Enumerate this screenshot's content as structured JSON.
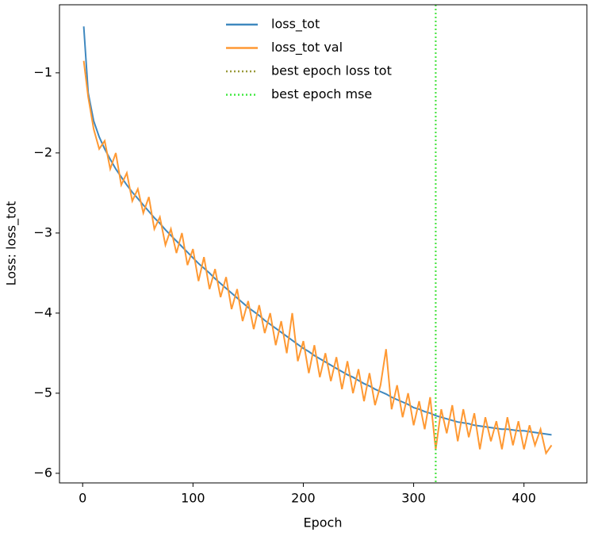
{
  "chart_data": {
    "type": "line",
    "x_label": "Epoch",
    "y_label": "Loss: loss_tot",
    "x": [
      1,
      5,
      10,
      15,
      20,
      25,
      30,
      35,
      40,
      45,
      50,
      55,
      60,
      65,
      70,
      75,
      80,
      85,
      90,
      95,
      100,
      105,
      110,
      115,
      120,
      125,
      130,
      135,
      140,
      145,
      150,
      155,
      160,
      165,
      170,
      175,
      180,
      185,
      190,
      195,
      200,
      205,
      210,
      215,
      220,
      225,
      230,
      235,
      240,
      245,
      250,
      255,
      260,
      265,
      270,
      275,
      280,
      285,
      290,
      295,
      300,
      305,
      310,
      315,
      320,
      325,
      330,
      335,
      340,
      345,
      350,
      355,
      360,
      365,
      370,
      375,
      380,
      385,
      390,
      395,
      400,
      405,
      410,
      415,
      420,
      425
    ],
    "series": [
      {
        "name": "loss_tot",
        "color": "#3f88bf",
        "values": [
          -0.42,
          -1.25,
          -1.6,
          -1.8,
          -1.95,
          -2.08,
          -2.2,
          -2.3,
          -2.4,
          -2.49,
          -2.57,
          -2.65,
          -2.73,
          -2.81,
          -2.88,
          -2.96,
          -3.03,
          -3.1,
          -3.17,
          -3.24,
          -3.31,
          -3.38,
          -3.44,
          -3.5,
          -3.57,
          -3.63,
          -3.69,
          -3.75,
          -3.81,
          -3.87,
          -3.93,
          -3.98,
          -4.03,
          -4.09,
          -4.14,
          -4.19,
          -4.24,
          -4.29,
          -4.34,
          -4.39,
          -4.44,
          -4.48,
          -4.53,
          -4.57,
          -4.61,
          -4.65,
          -4.69,
          -4.73,
          -4.77,
          -4.8,
          -4.84,
          -4.88,
          -4.91,
          -4.95,
          -4.98,
          -5.01,
          -5.05,
          -5.08,
          -5.11,
          -5.14,
          -5.18,
          -5.2,
          -5.23,
          -5.25,
          -5.28,
          -5.3,
          -5.32,
          -5.34,
          -5.36,
          -5.37,
          -5.38,
          -5.4,
          -5.41,
          -5.42,
          -5.43,
          -5.44,
          -5.45,
          -5.45,
          -5.46,
          -5.47,
          -5.47,
          -5.48,
          -5.49,
          -5.5,
          -5.51,
          -5.52
        ]
      },
      {
        "name": "loss_tot val",
        "color": "#ff9933",
        "values": [
          -0.85,
          -1.3,
          -1.7,
          -1.95,
          -1.85,
          -2.2,
          -2.0,
          -2.4,
          -2.25,
          -2.6,
          -2.45,
          -2.75,
          -2.55,
          -2.95,
          -2.8,
          -3.15,
          -2.95,
          -3.25,
          -3.0,
          -3.4,
          -3.2,
          -3.6,
          -3.3,
          -3.7,
          -3.45,
          -3.8,
          -3.55,
          -3.95,
          -3.7,
          -4.1,
          -3.85,
          -4.2,
          -3.9,
          -4.25,
          -4.0,
          -4.4,
          -4.1,
          -4.5,
          -4.0,
          -4.6,
          -4.35,
          -4.75,
          -4.4,
          -4.8,
          -4.5,
          -4.85,
          -4.55,
          -4.95,
          -4.6,
          -5.0,
          -4.7,
          -5.1,
          -4.75,
          -5.15,
          -4.9,
          -4.45,
          -5.2,
          -4.9,
          -5.3,
          -5.0,
          -5.4,
          -5.1,
          -5.45,
          -5.05,
          -5.7,
          -5.2,
          -5.5,
          -5.15,
          -5.6,
          -5.2,
          -5.55,
          -5.25,
          -5.7,
          -5.3,
          -5.6,
          -5.35,
          -5.7,
          -5.3,
          -5.65,
          -5.35,
          -5.7,
          -5.4,
          -5.65,
          -5.45,
          -5.75,
          -5.65
        ]
      }
    ],
    "markers": [
      {
        "name": "best epoch loss tot",
        "x": 320,
        "color": "#9a9a3a"
      },
      {
        "name": "best epoch mse",
        "x": 320,
        "color": "#44e844"
      }
    ],
    "xlim": [
      -21,
      457
    ],
    "ylim": [
      -6.12,
      -0.15
    ],
    "xticks": [
      0,
      100,
      200,
      300,
      400
    ],
    "yticks": [
      {
        "value": -6,
        "label": "−6"
      },
      {
        "value": -5,
        "label": "−5"
      },
      {
        "value": -4,
        "label": "−4"
      },
      {
        "value": -3,
        "label": "−3"
      },
      {
        "value": -2,
        "label": "−2"
      },
      {
        "value": -1,
        "label": "−1"
      }
    ],
    "legend": "upper center"
  }
}
